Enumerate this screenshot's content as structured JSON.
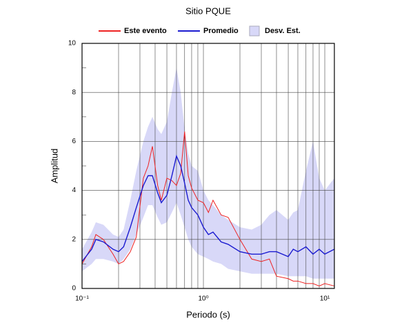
{
  "chart_data": {
    "type": "line",
    "title": "Sitio PQUE",
    "xlabel": "Periodo (s)",
    "ylabel": "Amplitud",
    "xscale": "log",
    "grid": true,
    "legend": "top",
    "x": [
      0.1,
      0.12,
      0.13,
      0.15,
      0.18,
      0.2,
      0.22,
      0.25,
      0.28,
      0.32,
      0.35,
      0.38,
      0.42,
      0.45,
      0.5,
      0.55,
      0.6,
      0.65,
      0.7,
      0.75,
      0.8,
      0.9,
      1.0,
      1.1,
      1.2,
      1.4,
      1.6,
      2.0,
      2.5,
      3.0,
      3.5,
      4.0,
      5.0,
      5.5,
      6.0,
      7.0,
      8.0,
      9.0,
      10,
      12
    ],
    "series": [
      {
        "name": "Este evento",
        "color": "#ee2222",
        "values": [
          1.0,
          1.7,
          2.2,
          2.0,
          1.4,
          1.0,
          1.1,
          1.5,
          2.1,
          4.5,
          5.0,
          5.8,
          4.2,
          3.6,
          4.5,
          4.4,
          4.2,
          4.7,
          6.4,
          4.6,
          4.1,
          3.6,
          3.5,
          3.1,
          3.6,
          3.0,
          2.9,
          2.0,
          1.2,
          1.1,
          1.2,
          0.5,
          0.4,
          0.3,
          0.3,
          0.2,
          0.2,
          0.1,
          0.2,
          0.1
        ]
      },
      {
        "name": "Promedio",
        "color": "#1a1ad0",
        "values": [
          1.1,
          1.6,
          2.0,
          1.9,
          1.6,
          1.5,
          1.7,
          2.5,
          3.3,
          4.2,
          4.6,
          4.6,
          3.9,
          3.5,
          3.8,
          4.6,
          5.4,
          5.0,
          4.3,
          3.6,
          3.3,
          3.0,
          2.5,
          2.2,
          2.3,
          1.9,
          1.8,
          1.5,
          1.4,
          1.4,
          1.5,
          1.5,
          1.3,
          1.6,
          1.5,
          1.7,
          1.4,
          1.6,
          1.4,
          1.6
        ]
      },
      {
        "name": "Desv. Est.",
        "color": "#d8d8f8",
        "band": true,
        "lower": [
          0.7,
          1.0,
          1.2,
          1.2,
          1.1,
          1.0,
          1.2,
          1.6,
          2.2,
          2.9,
          3.4,
          3.4,
          2.9,
          2.6,
          2.7,
          3.1,
          3.5,
          3.0,
          2.5,
          2.0,
          1.7,
          1.4,
          1.3,
          1.2,
          1.1,
          1.0,
          0.8,
          0.7,
          0.6,
          0.6,
          0.6,
          0.6,
          0.5,
          0.5,
          0.5,
          0.5,
          0.4,
          0.4,
          0.4,
          0.4
        ],
        "upper": [
          1.6,
          2.3,
          2.7,
          2.6,
          2.2,
          2.1,
          2.4,
          3.6,
          4.8,
          6.0,
          6.6,
          7.0,
          6.5,
          6.3,
          6.8,
          8.0,
          9.0,
          8.0,
          6.5,
          5.5,
          5.0,
          4.8,
          4.0,
          3.6,
          3.4,
          3.0,
          2.8,
          2.5,
          2.4,
          2.6,
          3.0,
          3.2,
          2.8,
          3.1,
          3.2,
          4.8,
          6.0,
          4.5,
          4.0,
          4.5
        ]
      }
    ],
    "xlim": [
      0.1,
      12
    ],
    "xticks": [
      {
        "value": 0.1,
        "label": "10⁻¹"
      },
      {
        "value": 1,
        "label": "10⁰"
      },
      {
        "value": 10,
        "label": "10¹"
      }
    ],
    "xminorticks": [
      0.2,
      0.3,
      0.4,
      0.5,
      0.6,
      0.7,
      0.8,
      0.9,
      2,
      3,
      4,
      5,
      6,
      7,
      8,
      9
    ],
    "ylim": [
      0,
      10
    ],
    "yticks": [
      0,
      2,
      4,
      6,
      8,
      10
    ],
    "yminorticks": [
      1,
      3,
      5,
      7,
      9
    ]
  }
}
